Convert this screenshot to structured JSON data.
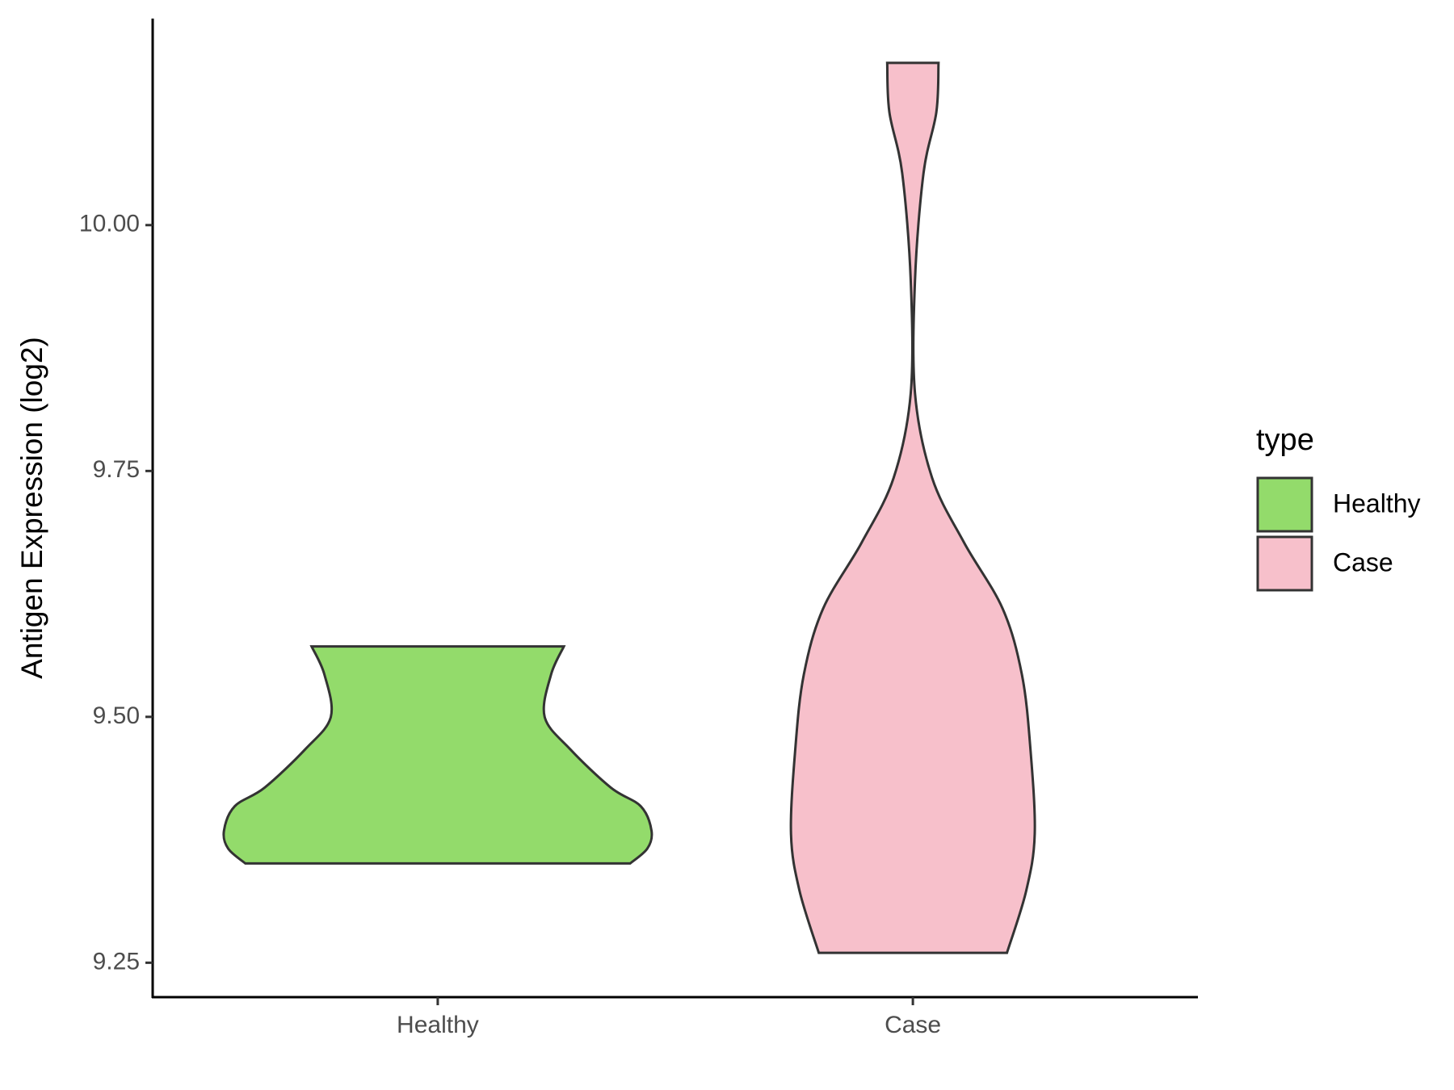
{
  "chart_data": {
    "type": "violin",
    "y_label": "Antigen Expression (log2)",
    "categories": [
      "Healthy",
      "Case"
    ],
    "series": [
      {
        "name": "Healthy",
        "color": "#93db6b",
        "y": [
          9.351,
          9.366,
          9.384,
          9.409,
          9.428,
          9.467,
          9.5,
          9.543,
          9.5716
        ],
        "density": [
          0.9,
          0.98,
          1.0,
          0.95,
          0.81,
          0.62,
          0.5,
          0.53,
          0.59
        ]
      },
      {
        "name": "Case",
        "color": "#f7c0cb",
        "y": [
          9.26,
          9.323,
          9.381,
          9.467,
          9.543,
          9.61,
          9.677,
          9.743,
          9.829,
          9.944,
          10.053,
          10.115,
          10.165
        ],
        "density": [
          0.44,
          0.53,
          0.57,
          0.55,
          0.51,
          0.42,
          0.24,
          0.09,
          0.01,
          0.01,
          0.05,
          0.11,
          0.12
        ]
      }
    ],
    "ylim": [
      9.215,
      10.21
    ],
    "yticks": [
      {
        "value": 9.25,
        "label": "9.25"
      },
      {
        "value": 9.5,
        "label": "9.50"
      },
      {
        "value": 9.75,
        "label": "9.75"
      },
      {
        "value": 10,
        "label": "10.00"
      }
    ],
    "legend_title": "type",
    "legend_position": "right",
    "grid": false
  }
}
